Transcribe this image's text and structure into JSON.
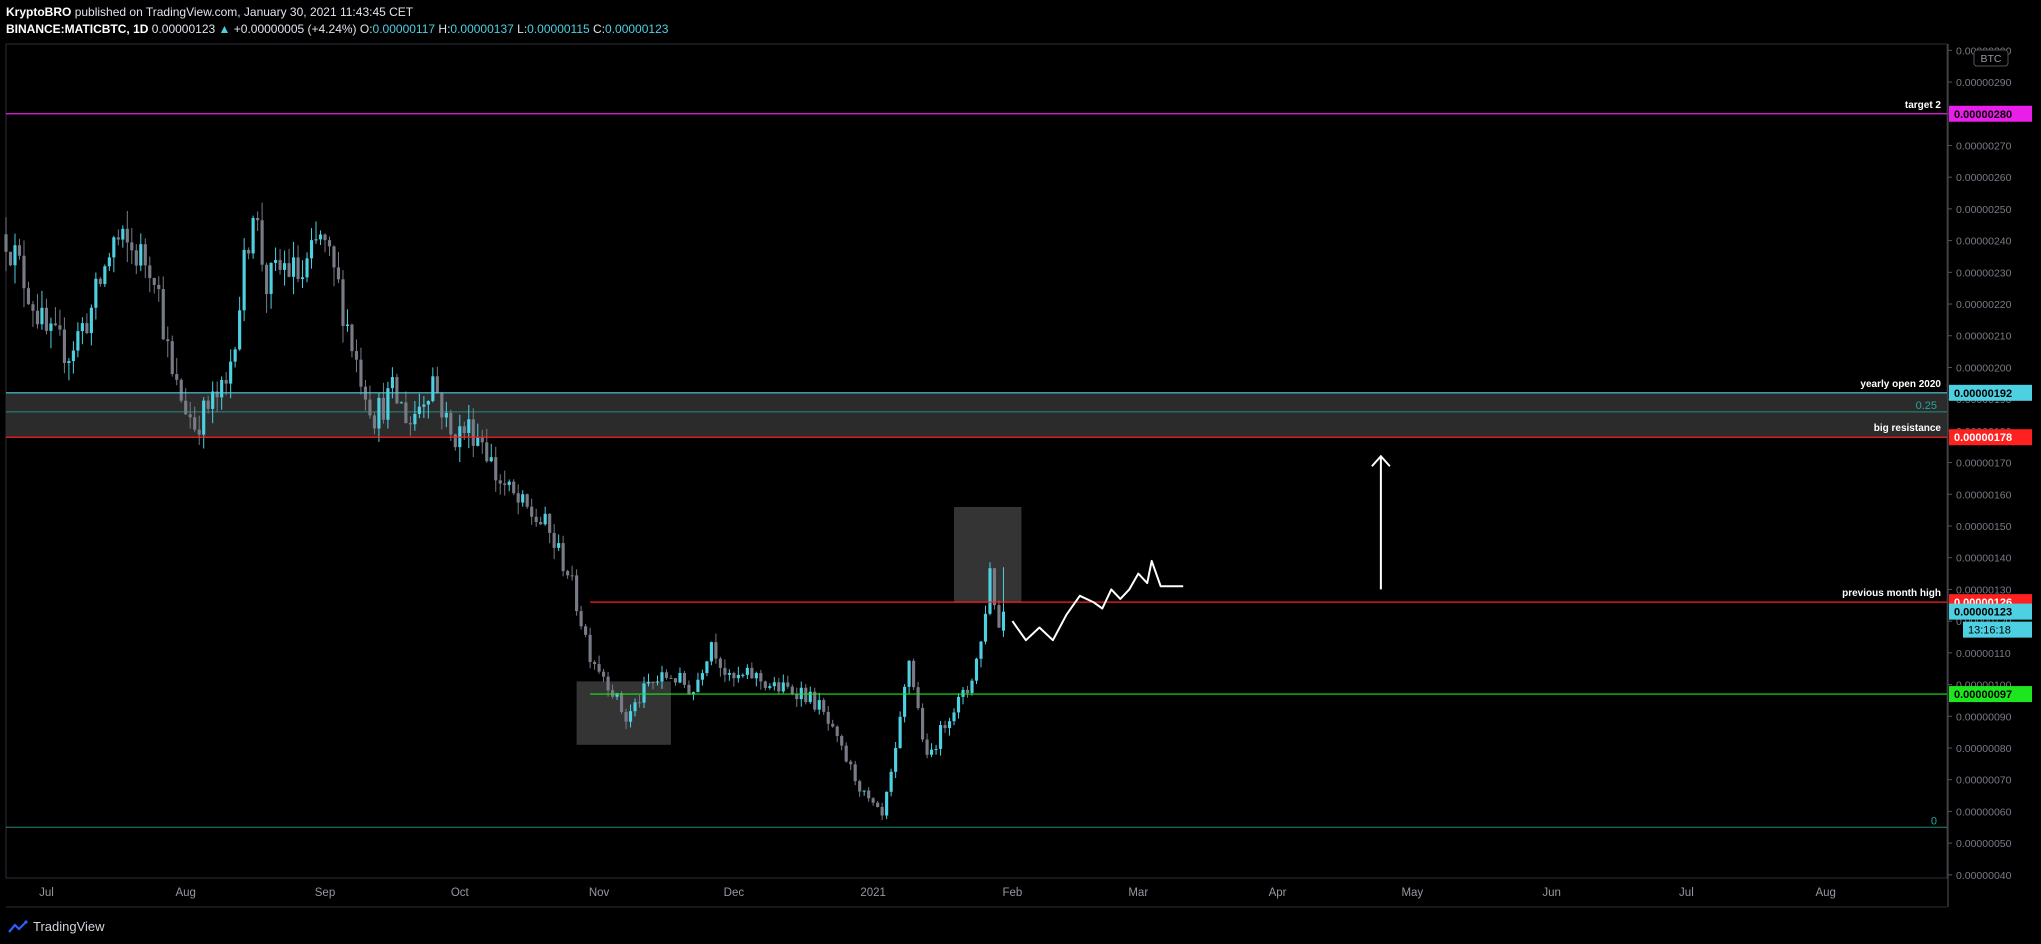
{
  "header": {
    "author": "KryptoBRO",
    "published": "published on TradingView.com, January 30, 2021 11:43:45 CET",
    "symbol": "BINANCE:MATICBTC, 1D",
    "last": "0.00000123",
    "change_arrow": "▲",
    "change": "+0.00000005 (+4.24%)",
    "o_label": "O:",
    "o_value": "0.00000117",
    "h_label": "H:",
    "h_value": "0.00000137",
    "l_label": "L:",
    "l_value": "0.00000115",
    "c_label": "C:",
    "c_value": "0.00000123"
  },
  "footer": {
    "brand": "TradingView"
  },
  "chart_data": {
    "type": "candlestick",
    "currency_badge": "BTC",
    "y_ticks": [
      "0.00000300",
      "0.00000290",
      "0.00000280",
      "0.00000270",
      "0.00000260",
      "0.00000250",
      "0.00000240",
      "0.00000230",
      "0.00000220",
      "0.00000210",
      "0.00000200",
      "0.00000190",
      "0.00000180",
      "0.00000170",
      "0.00000160",
      "0.00000150",
      "0.00000140",
      "0.00000130",
      "0.00000120",
      "0.00000110",
      "0.00000100",
      "0.00000090",
      "0.00000080",
      "0.00000070",
      "0.00000060",
      "0.00000050",
      "0.00000040"
    ],
    "ylim": [
      3.9e-07,
      3.02e-06
    ],
    "x_ticks": [
      "Jul",
      "Aug",
      "Sep",
      "Oct",
      "Nov",
      "Dec",
      "2021",
      "Feb",
      "Mar",
      "Apr",
      "May",
      "Jun",
      "Jul",
      "Aug"
    ],
    "x_dates": [
      "2020-07-01",
      "2020-08-01",
      "2020-09-01",
      "2020-10-01",
      "2020-11-01",
      "2020-12-01",
      "2021-01-01",
      "2021-02-01",
      "2021-03-01",
      "2021-04-01",
      "2021-05-01",
      "2021-06-01",
      "2021-07-01",
      "2021-08-01"
    ],
    "x_range": [
      "2020-06-22",
      "2021-08-28"
    ],
    "levels": [
      {
        "name": "target 2",
        "price": 2.8e-06,
        "label": "0.00000280",
        "color": "#e91ee9",
        "text": "target 2",
        "start": "2020-06-22"
      },
      {
        "name": "yearly open 2020",
        "price": 1.92e-06,
        "label": "0.00000192",
        "color": "#4dd0e1",
        "text": "yearly open 2020",
        "start": "2020-06-22"
      },
      {
        "name": "big resistance",
        "price": 1.78e-06,
        "label": "0.00000178",
        "color": "#ff2020",
        "text": "big resistance",
        "start": "2020-06-22"
      },
      {
        "name": "previous month high",
        "price": 1.26e-06,
        "label": "0.00000126",
        "color": "#ff2020",
        "text": "previous month high",
        "start": "2020-10-30"
      },
      {
        "name": "support",
        "price": 9.7e-07,
        "label": "0.00000097",
        "color": "#1ee61e",
        "text": "",
        "start": "2020-10-30"
      }
    ],
    "fib": [
      {
        "label": "0.25",
        "price": 1.86e-06,
        "color": "#26a69a"
      },
      {
        "label": "0",
        "price": 5.5e-07,
        "color": "#26a69a"
      }
    ],
    "current_price": {
      "label": "0.00000123",
      "price": 1.23e-06,
      "countdown": "13:16:18",
      "color": "#4dd0e1"
    },
    "zone": {
      "top": 1.92e-06,
      "bottom": 1.78e-06
    },
    "boxes": [
      {
        "from": "2020-10-27",
        "to": "2020-11-17",
        "top": 1.01e-06,
        "bottom": 8.1e-07
      },
      {
        "from": "2021-01-19",
        "to": "2021-02-03",
        "top": 1.56e-06,
        "bottom": 1.26e-06
      }
    ],
    "arrow": {
      "date": "2021-04-24",
      "from": 1.3e-06,
      "to": 1.72e-06
    },
    "projection": [
      [
        "2021-02-01",
        1.2e-06
      ],
      [
        "2021-02-04",
        1.14e-06
      ],
      [
        "2021-02-07",
        1.18e-06
      ],
      [
        "2021-02-10",
        1.14e-06
      ],
      [
        "2021-02-13",
        1.22e-06
      ],
      [
        "2021-02-16",
        1.28e-06
      ],
      [
        "2021-02-19",
        1.26e-06
      ],
      [
        "2021-02-21",
        1.24e-06
      ],
      [
        "2021-02-23",
        1.3e-06
      ],
      [
        "2021-02-25",
        1.27e-06
      ],
      [
        "2021-02-27",
        1.3e-06
      ],
      [
        "2021-03-01",
        1.35e-06
      ],
      [
        "2021-03-03",
        1.32e-06
      ],
      [
        "2021-03-04",
        1.39e-06
      ],
      [
        "2021-03-06",
        1.31e-06
      ],
      [
        "2021-03-11",
        1.31e-06
      ]
    ],
    "anchors": [
      [
        "2020-06-22",
        2.42e-06
      ],
      [
        "2020-06-26",
        2.28e-06
      ],
      [
        "2020-07-01",
        2.1e-06
      ],
      [
        "2020-07-06",
        2.05e-06
      ],
      [
        "2020-07-11",
        2.18e-06
      ],
      [
        "2020-07-16",
        2.4e-06
      ],
      [
        "2020-07-21",
        2.36e-06
      ],
      [
        "2020-07-25",
        2.32e-06
      ],
      [
        "2020-07-29",
        1.96e-06
      ],
      [
        "2020-08-03",
        1.82e-06
      ],
      [
        "2020-08-07",
        1.89e-06
      ],
      [
        "2020-08-10",
        1.93e-06
      ],
      [
        "2020-08-13",
        2.21e-06
      ],
      [
        "2020-08-16",
        2.52e-06
      ],
      [
        "2020-08-19",
        2.26e-06
      ],
      [
        "2020-08-23",
        2.32e-06
      ],
      [
        "2020-08-27",
        2.28e-06
      ],
      [
        "2020-08-31",
        2.41e-06
      ],
      [
        "2020-09-04",
        2.25e-06
      ],
      [
        "2020-09-08",
        2.02e-06
      ],
      [
        "2020-09-12",
        1.85e-06
      ],
      [
        "2020-09-16",
        1.92e-06
      ],
      [
        "2020-09-20",
        1.83e-06
      ],
      [
        "2020-09-25",
        1.97e-06
      ],
      [
        "2020-09-29",
        1.78e-06
      ],
      [
        "2020-10-03",
        1.81e-06
      ],
      [
        "2020-10-06",
        1.78e-06
      ],
      [
        "2020-10-09",
        1.66e-06
      ],
      [
        "2020-10-14",
        1.57e-06
      ],
      [
        "2020-10-20",
        1.5e-06
      ],
      [
        "2020-10-25",
        1.36e-06
      ],
      [
        "2020-10-30",
        1.1e-06
      ],
      [
        "2020-11-03",
        1.01e-06
      ],
      [
        "2020-11-07",
        8.9e-07
      ],
      [
        "2020-11-12",
        1e-06
      ],
      [
        "2020-11-17",
        1.03e-06
      ],
      [
        "2020-11-22",
        9.8e-07
      ],
      [
        "2020-11-26",
        1.14e-06
      ],
      [
        "2020-11-30",
        1.01e-06
      ],
      [
        "2020-12-05",
        1.03e-06
      ],
      [
        "2020-12-10",
        9.9e-07
      ],
      [
        "2020-12-16",
        9.8e-07
      ],
      [
        "2020-12-20",
        9.3e-07
      ],
      [
        "2020-12-25",
        7.9e-07
      ],
      [
        "2020-12-30",
        6.5e-07
      ],
      [
        "2021-01-03",
        5.8e-07
      ],
      [
        "2021-01-06",
        7.8e-07
      ],
      [
        "2021-01-09",
        1.08e-06
      ],
      [
        "2021-01-13",
        7.6e-07
      ],
      [
        "2021-01-18",
        9.1e-07
      ],
      [
        "2021-01-22",
        9.8e-07
      ],
      [
        "2021-01-25",
        1.13e-06
      ],
      [
        "2021-01-27",
        1.36e-06
      ],
      [
        "2021-01-29",
        1.18e-06
      ],
      [
        "2021-01-30",
        1.23e-06
      ]
    ]
  }
}
